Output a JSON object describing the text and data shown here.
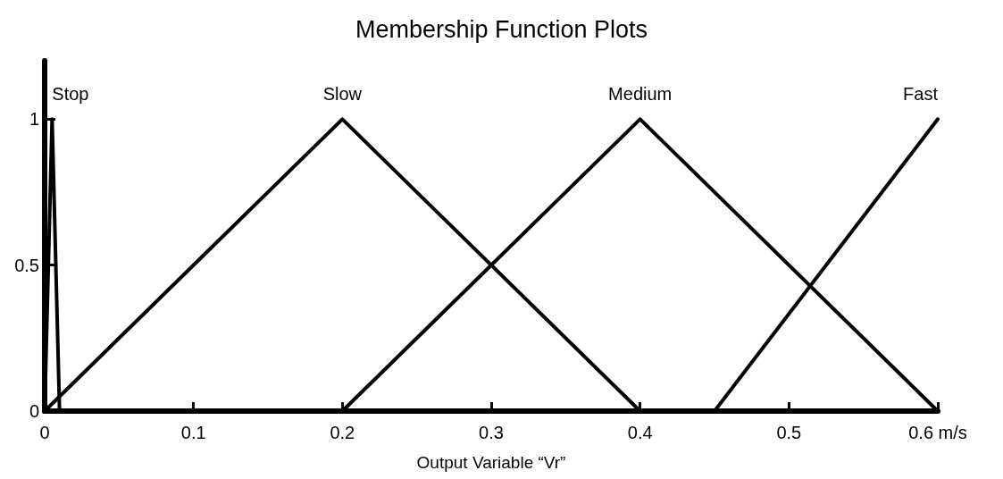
{
  "chart_data": {
    "type": "line",
    "title": "Membership Function Plots",
    "xlabel": "Output Variable “Vr”",
    "xlim": [
      0,
      0.6
    ],
    "xticks": [
      0,
      0.1,
      0.2,
      0.3,
      0.4,
      0.5,
      {
        "value": 0.6,
        "label": "0.6 m/s"
      }
    ],
    "ylim": [
      0,
      1.2
    ],
    "yticks": [
      0,
      0.5,
      1
    ],
    "series": [
      {
        "name": "Stop",
        "color": "#000000",
        "x": [
          0,
          0.005,
          0.01
        ],
        "values": [
          0,
          1,
          0
        ]
      },
      {
        "name": "Slow",
        "color": "#000000",
        "x": [
          0,
          0.2,
          0.4
        ],
        "values": [
          0,
          1,
          0
        ]
      },
      {
        "name": "Medium",
        "color": "#000000",
        "x": [
          0.2,
          0.4,
          0.6
        ],
        "values": [
          0,
          1,
          0
        ]
      },
      {
        "name": "Fast",
        "color": "#000000",
        "x": [
          0.45,
          0.6
        ],
        "values": [
          0,
          1
        ]
      }
    ]
  }
}
